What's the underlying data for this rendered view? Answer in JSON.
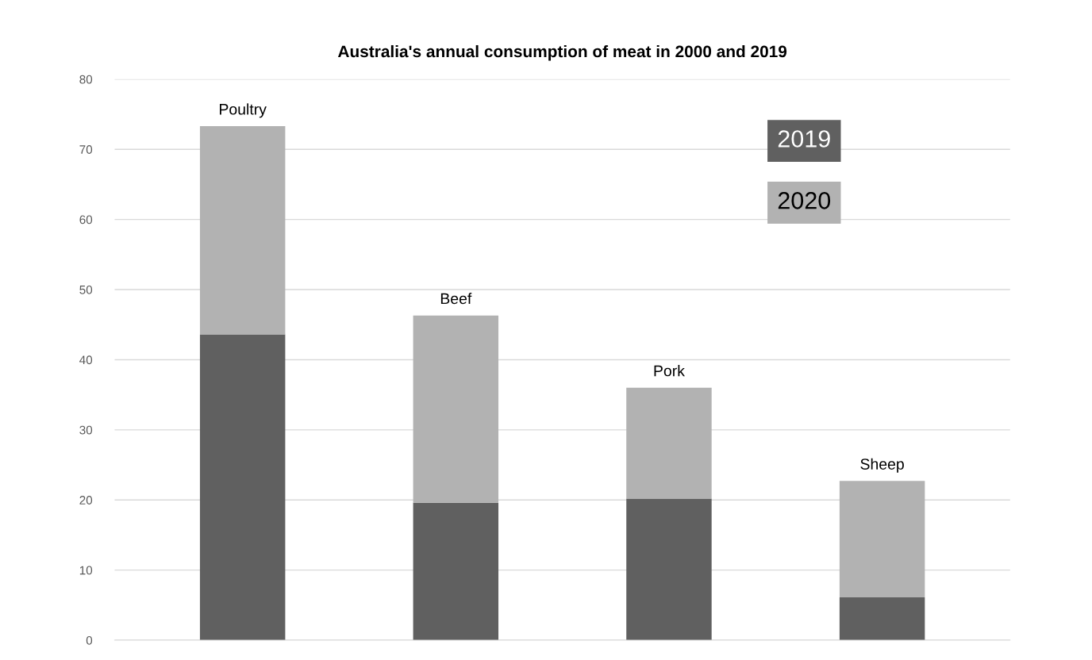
{
  "chart_data": {
    "type": "bar",
    "title": "Australia's annual consumption of meat in 2000 and 2019",
    "categories": [
      "Poultry",
      "Beef",
      "Pork",
      "Sheep"
    ],
    "series": [
      {
        "name": "2019",
        "color": "#606060",
        "values": [
          43.6,
          19.6,
          20.2,
          6.1
        ]
      },
      {
        "name": "2020",
        "color": "#b2b2b2",
        "values": [
          29.7,
          26.7,
          15.8,
          16.6
        ]
      }
    ],
    "stacked": true,
    "ylim": [
      0,
      80
    ],
    "yticks": [
      0,
      10,
      20,
      30,
      40,
      50,
      60,
      70,
      80
    ],
    "grid": "y",
    "legend": "top right"
  }
}
